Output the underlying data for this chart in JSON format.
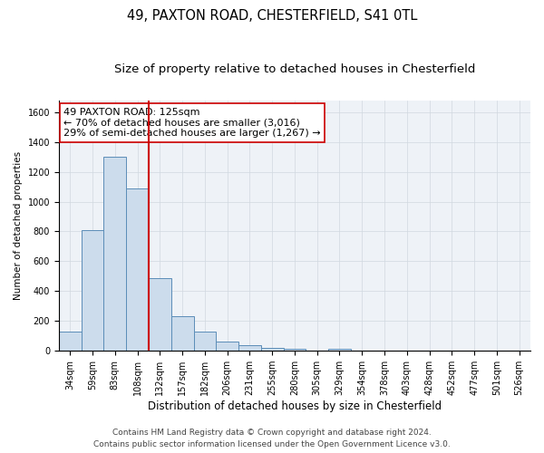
{
  "title1": "49, PAXTON ROAD, CHESTERFIELD, S41 0TL",
  "title2": "Size of property relative to detached houses in Chesterfield",
  "xlabel": "Distribution of detached houses by size in Chesterfield",
  "ylabel": "Number of detached properties",
  "categories": [
    "34sqm",
    "59sqm",
    "83sqm",
    "108sqm",
    "132sqm",
    "157sqm",
    "182sqm",
    "206sqm",
    "231sqm",
    "255sqm",
    "280sqm",
    "305sqm",
    "329sqm",
    "354sqm",
    "378sqm",
    "403sqm",
    "428sqm",
    "452sqm",
    "477sqm",
    "501sqm",
    "526sqm"
  ],
  "values": [
    130,
    810,
    1300,
    1090,
    490,
    230,
    130,
    65,
    35,
    20,
    15,
    0,
    15,
    0,
    0,
    0,
    0,
    0,
    0,
    0,
    0
  ],
  "bar_color": "#ccdcec",
  "bar_edge_color": "#5b8db8",
  "vline_color": "#cc0000",
  "annotation_text": "49 PAXTON ROAD: 125sqm\n← 70% of detached houses are smaller (3,016)\n29% of semi-detached houses are larger (1,267) →",
  "annotation_box_color": "#ffffff",
  "annotation_box_edge_color": "#cc0000",
  "ylim": [
    0,
    1680
  ],
  "yticks": [
    0,
    200,
    400,
    600,
    800,
    1000,
    1200,
    1400,
    1600
  ],
  "grid_color": "#d0d8e0",
  "background_color": "#eef2f7",
  "footer1": "Contains HM Land Registry data © Crown copyright and database right 2024.",
  "footer2": "Contains public sector information licensed under the Open Government Licence v3.0.",
  "title1_fontsize": 10.5,
  "title2_fontsize": 9.5,
  "xlabel_fontsize": 8.5,
  "ylabel_fontsize": 7.5,
  "tick_fontsize": 7,
  "footer_fontsize": 6.5,
  "ann_fontsize": 8
}
